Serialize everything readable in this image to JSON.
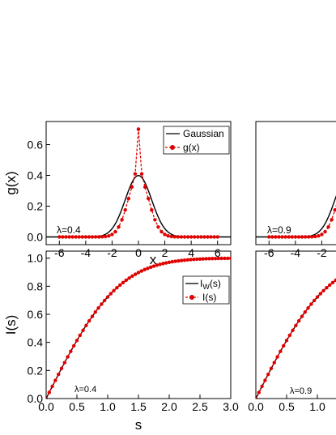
{
  "chart_data": [
    {
      "type": "line",
      "id": "g-left",
      "xlabel": "x",
      "ylabel": "g(x)",
      "xlim": [
        -7,
        7
      ],
      "ylim": [
        -0.05,
        0.75
      ],
      "xticks": [
        -6,
        -4,
        -2,
        0,
        2,
        4,
        6
      ],
      "yticks": [
        0.0,
        0.2,
        0.4,
        0.6
      ],
      "xtick_labels": [
        "-6",
        "-4",
        "-2",
        "0",
        "2",
        "4",
        "6"
      ],
      "ytick_labels": [
        "0.0",
        "0.2",
        "0.4",
        "0.6"
      ],
      "annotation": "λ=0.4",
      "legend_position": "top-right",
      "series": [
        {
          "name": "Gaussian",
          "style": "solid",
          "color": "#000000",
          "function": "gaussian",
          "sigma": 1.0
        },
        {
          "name": "g(x)",
          "style": "dashed-markers",
          "color": "#e00000",
          "function": "peaked",
          "peak": 0.7,
          "x_from": -6,
          "x_to": 6,
          "step": 0.25
        }
      ]
    },
    {
      "type": "line",
      "id": "g-right",
      "xlim": [
        -7,
        7
      ],
      "ylim": [
        -0.05,
        0.75
      ],
      "xticks": [
        -6,
        -4,
        -2
      ],
      "xtick_labels": [
        "-6",
        "-4",
        "-2"
      ],
      "annotation": "λ=0.9",
      "series": [
        {
          "name": "",
          "style": "solid",
          "color": "#000000",
          "function": "gaussian",
          "sigma": 1.0
        },
        {
          "name": "",
          "style": "dashed-markers",
          "color": "#e00000",
          "function": "peaked",
          "peak": 0.7,
          "x_from": -6,
          "x_to": 6,
          "step": 0.25
        }
      ]
    },
    {
      "type": "line",
      "id": "I-left",
      "xlabel": "s",
      "ylabel": "I(s)",
      "xlim": [
        0,
        3.0
      ],
      "ylim": [
        0,
        1.05
      ],
      "xticks": [
        0.0,
        0.5,
        1.0,
        1.5,
        2.0,
        2.5,
        3.0
      ],
      "yticks": [
        0.0,
        0.2,
        0.4,
        0.6,
        0.8,
        1.0
      ],
      "xtick_labels": [
        "0.0",
        "0.5",
        "1.0",
        "1.5",
        "2.0",
        "2.5",
        "3.0"
      ],
      "ytick_labels": [
        "0.0",
        "0.2",
        "0.4",
        "0.6",
        "0.8",
        "1.0"
      ],
      "annotation": "λ=0.4",
      "legend_position": "top-right",
      "series": [
        {
          "name": "I_W(s)",
          "style": "solid",
          "color": "#000000",
          "function": "erf-like",
          "scale": 1.3,
          "x_from": 0,
          "x_to": 3.0
        },
        {
          "name": "I(s)",
          "style": "dashed-markers",
          "color": "#e00000",
          "function": "erf-like",
          "scale": 1.3,
          "x_from": 0,
          "x_to": 3.0,
          "step": 0.05
        }
      ]
    },
    {
      "type": "line",
      "id": "I-right",
      "xlim": [
        0,
        3.0
      ],
      "ylim": [
        0,
        1.05
      ],
      "xticks": [
        0.0,
        0.5,
        1.0
      ],
      "xtick_labels": [
        "0.0",
        "0.5",
        "1.0"
      ],
      "annotation": "λ=0.9",
      "series": [
        {
          "name": "",
          "style": "solid",
          "color": "#000000",
          "function": "erf-like",
          "scale": 1.3,
          "x_from": 0,
          "x_to": 3.0
        },
        {
          "name": "",
          "style": "dashed-markers",
          "color": "#e00000",
          "function": "erf-like",
          "scale": 1.3,
          "x_from": 0,
          "x_to": 3.0,
          "step": 0.05
        }
      ]
    }
  ],
  "legend": {
    "top": {
      "line1": "Gaussian",
      "line2": "g(x)"
    },
    "bottom": {
      "line1_main": "I",
      "line1_sub": "W",
      "line1_rest": "(s)",
      "line2": "I(s)"
    }
  }
}
